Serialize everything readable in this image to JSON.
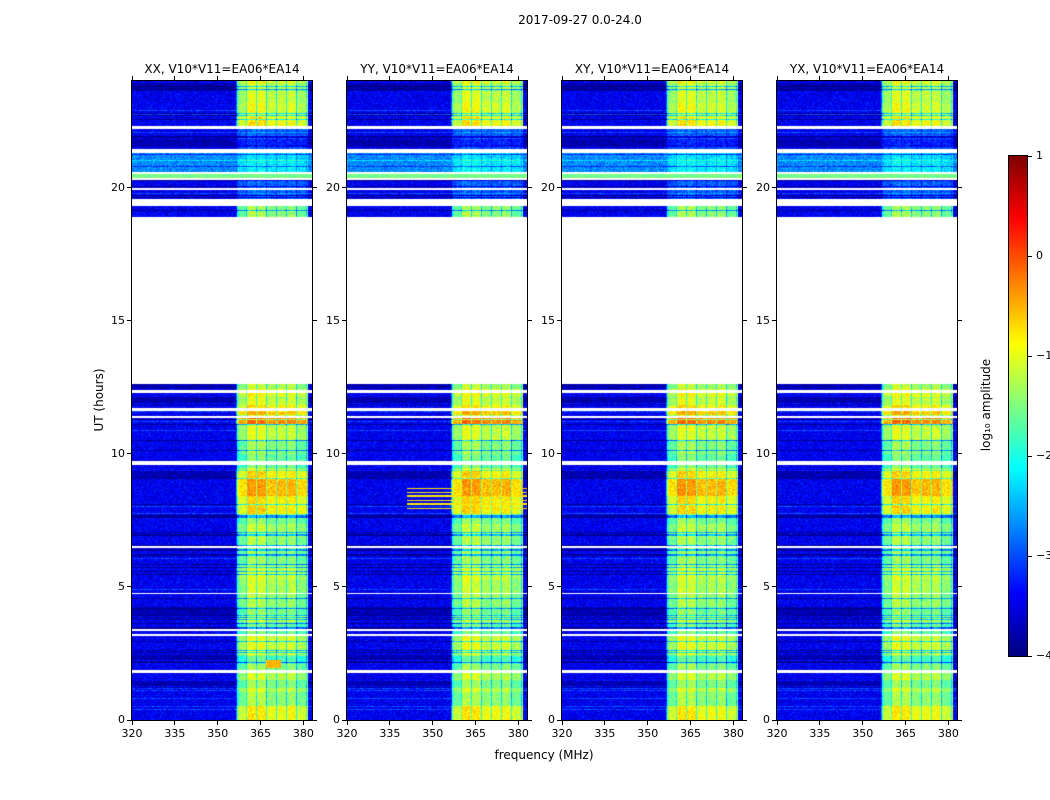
{
  "chart_data": {
    "type": "heatmap",
    "title": "2017-09-27 0.0-24.0",
    "xlabel": "frequency (MHz)",
    "ylabel": "UT (hours)",
    "xlim": [
      320,
      383
    ],
    "ylim": [
      0,
      24
    ],
    "xticks": [
      320,
      335,
      350,
      365,
      380
    ],
    "yticks": [
      0,
      5,
      10,
      15,
      20
    ],
    "grid": false,
    "panels": [
      {
        "id": "XX",
        "label": "XX, V10*V11=EA06*EA14"
      },
      {
        "id": "YY",
        "label": "YY, V10*V11=EA06*EA14"
      },
      {
        "id": "XY",
        "label": "XY, V10*V11=EA06*EA14"
      },
      {
        "id": "YX",
        "label": "YX, V10*V11=EA06*EA14"
      }
    ],
    "colorbar": {
      "label": "log₁₀ amplitude",
      "ticks": [
        1,
        0,
        -1,
        -2,
        -3,
        -4
      ],
      "vmin": -4,
      "vmax": 1,
      "colormap": "jet"
    },
    "heatmap": {
      "background_value": -3.45,
      "noise_amplitude": 0.28,
      "gaps_ut": [
        [
          1.78,
          1.86
        ],
        [
          3.14,
          3.22
        ],
        [
          3.36,
          3.43
        ],
        [
          4.72,
          4.78
        ],
        [
          6.46,
          6.53
        ],
        [
          9.58,
          9.72
        ],
        [
          11.36,
          11.43
        ],
        [
          11.62,
          11.7
        ],
        [
          12.3,
          12.38
        ],
        [
          12.62,
          18.88
        ],
        [
          19.3,
          19.55
        ],
        [
          19.9,
          20.0
        ],
        [
          20.28,
          20.34
        ],
        [
          20.52,
          20.58
        ],
        [
          21.28,
          21.44
        ],
        [
          22.2,
          22.3
        ]
      ],
      "rfi_band": {
        "freq_range": [
          356.5,
          381.5
        ],
        "base_value": -1.45,
        "stripe_width_mhz": 3.5
      },
      "band_visibility": [
        [
          0,
          12.62,
          1
        ],
        [
          18.88,
          19.3,
          1
        ],
        [
          19.55,
          20.28,
          0.3
        ],
        [
          20.58,
          21.28,
          0.4
        ],
        [
          21.44,
          22.2,
          0.25
        ],
        [
          22.3,
          24,
          1
        ]
      ],
      "bright_patches_ut": [
        [
          0,
          1.78,
          0.25
        ],
        [
          2.4,
          3.14,
          0.3
        ],
        [
          7.75,
          9.35,
          0.7
        ],
        [
          11.1,
          11.36,
          0.9
        ],
        [
          11.44,
          11.62,
          0.6
        ],
        [
          11.7,
          12.62,
          0.45
        ],
        [
          22.3,
          23.95,
          0.2
        ]
      ],
      "green_line_ut": [
        20.34,
        20.52
      ],
      "cyan_region_ut": [
        20.58,
        21.28
      ],
      "yy_streaks": {
        "panel": 1,
        "freq_start": 341,
        "value": -0.75,
        "rows_ut": [
          [
            7.92,
            7.98
          ],
          [
            8.08,
            8.14
          ],
          [
            8.22,
            8.28
          ],
          [
            8.38,
            8.44
          ],
          [
            8.52,
            8.58
          ],
          [
            8.66,
            8.72
          ]
        ]
      },
      "xx_blob": {
        "panel": 0,
        "ut": [
          1.95,
          2.25
        ],
        "freq": [
          367,
          372
        ],
        "value": -0.5
      }
    }
  }
}
